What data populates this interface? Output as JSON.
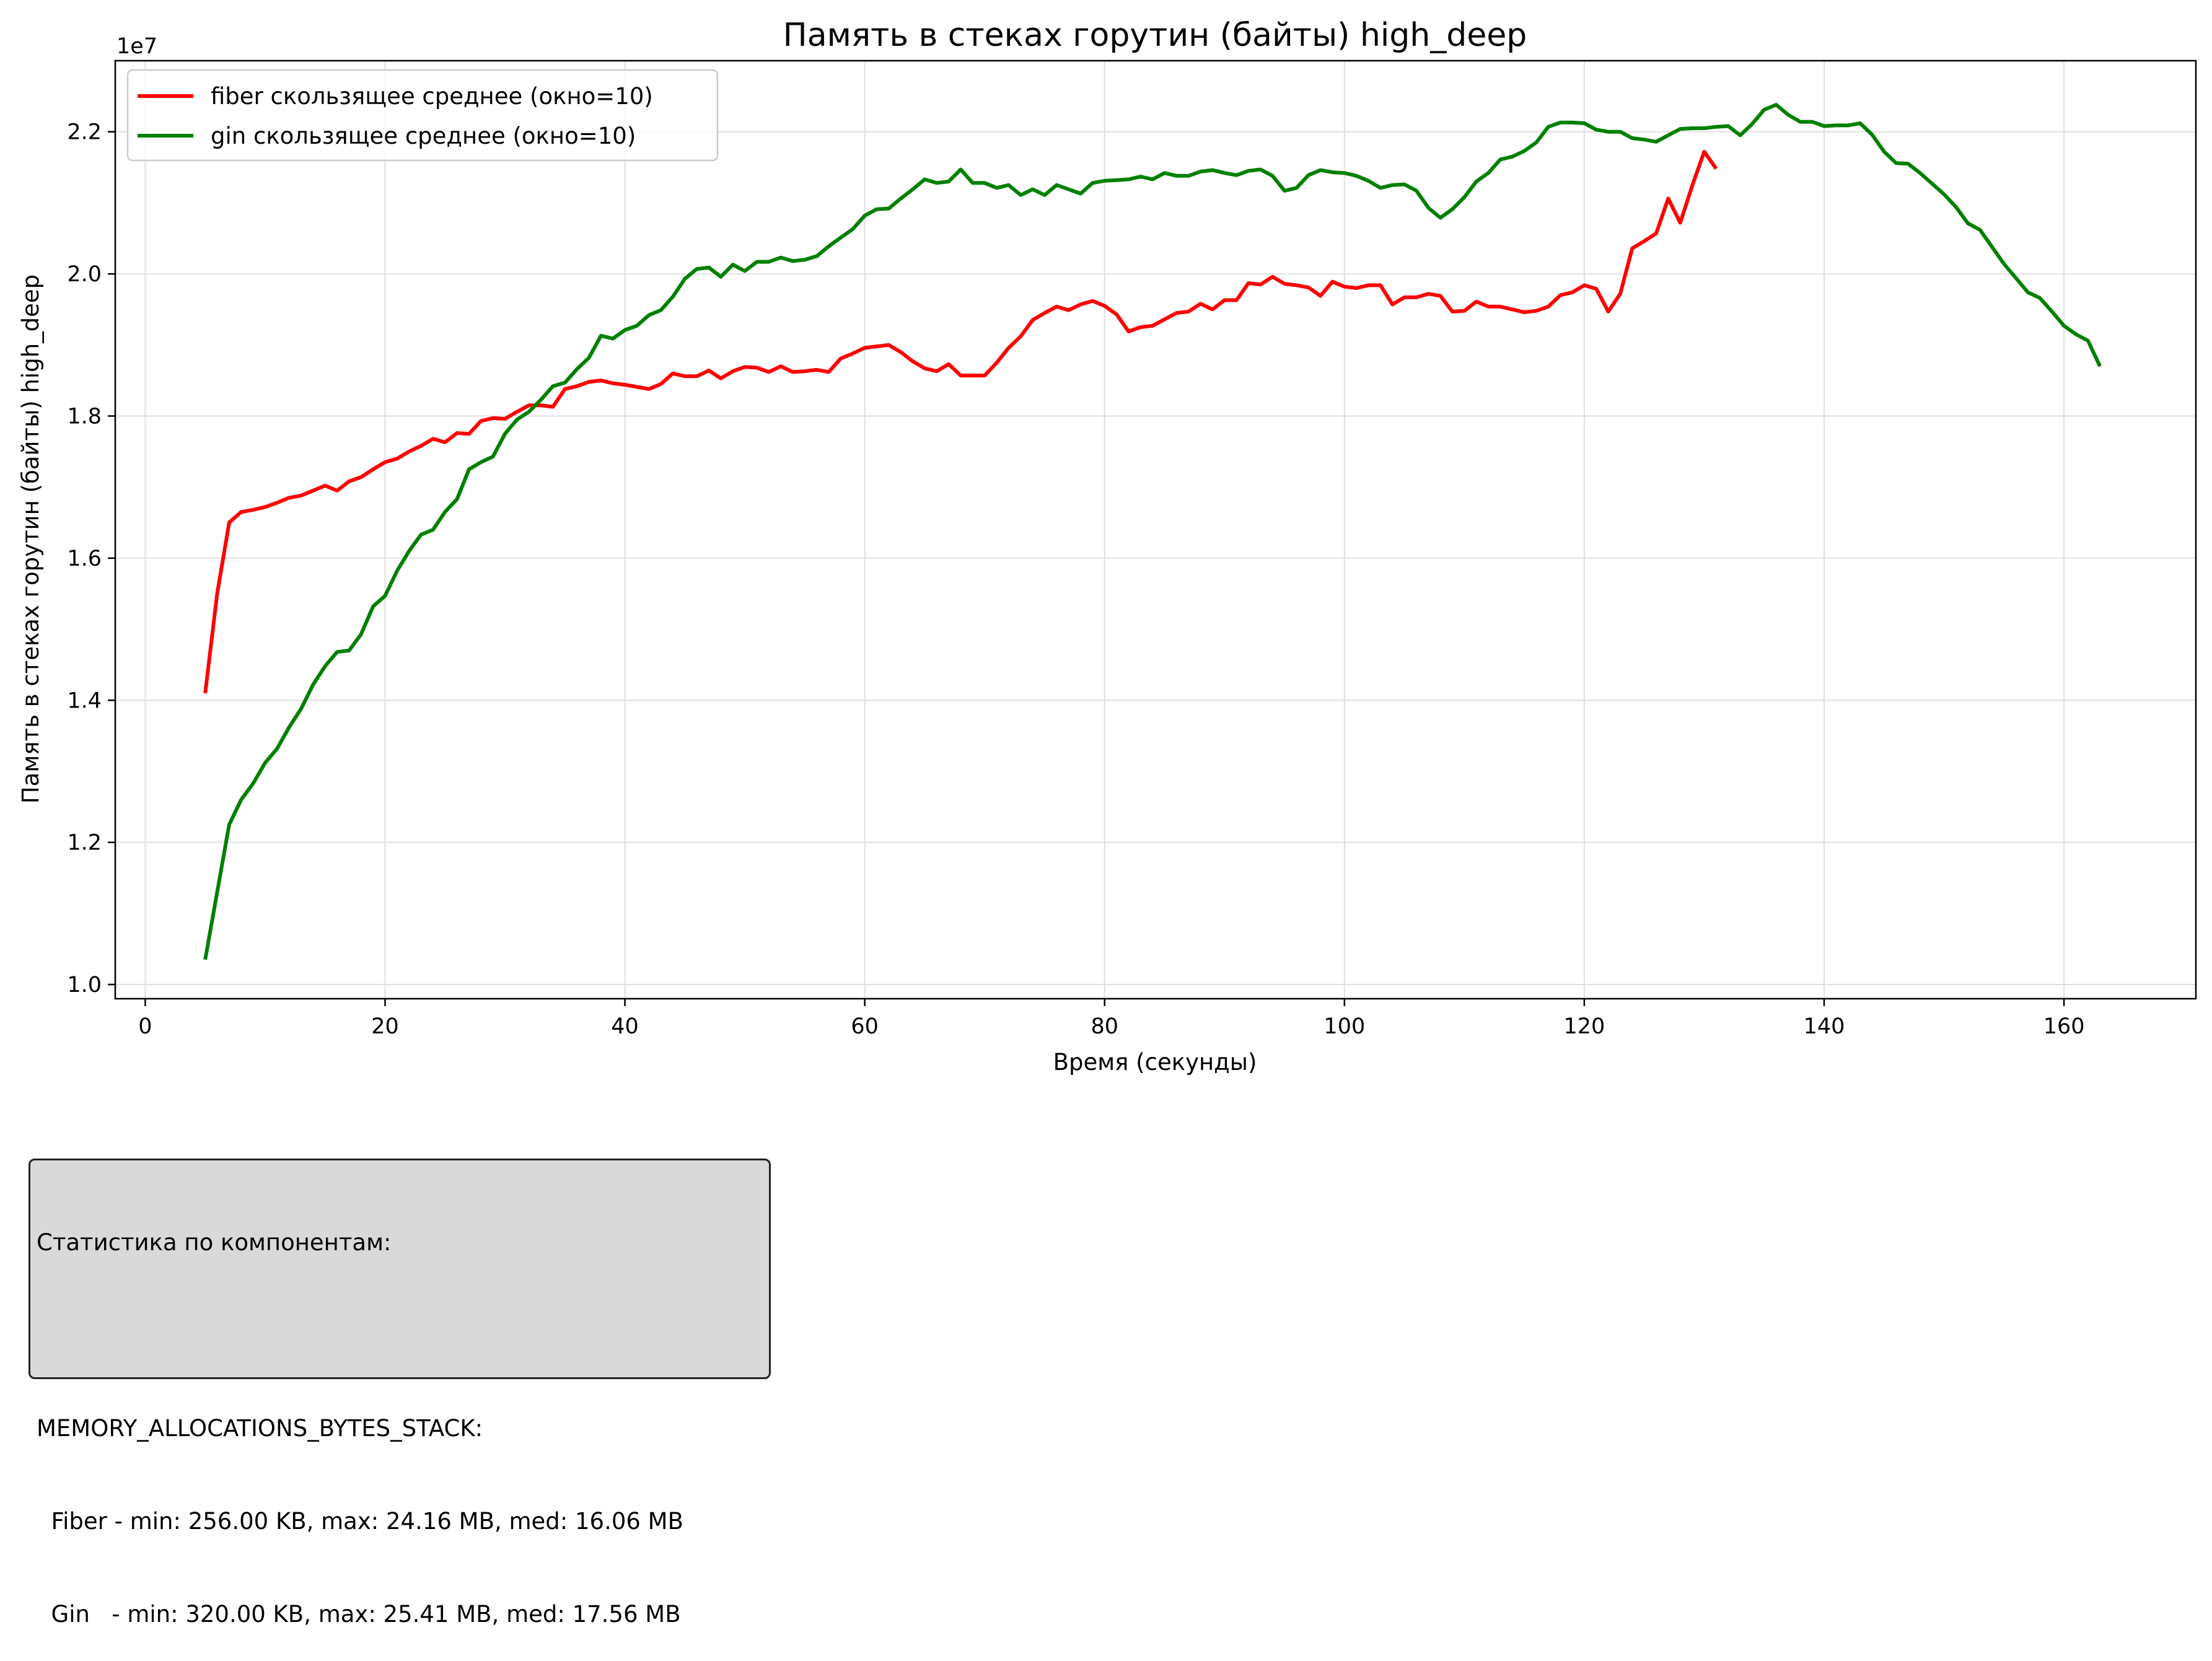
{
  "chart_data": {
    "type": "line",
    "title": "Память в стеках горутин (байты) high_deep",
    "xlabel": "Время (секунды)",
    "ylabel": "Память в стеках горутин (байты) high_deep",
    "y_offset_label": "1e7",
    "xlim": [
      -2.5,
      171
    ],
    "ylim": [
      9800000,
      23000000
    ],
    "x_ticks": [
      0,
      20,
      40,
      60,
      80,
      100,
      120,
      140,
      160
    ],
    "x_tick_labels": [
      "0",
      "20",
      "40",
      "60",
      "80",
      "100",
      "120",
      "140",
      "160"
    ],
    "y_ticks": [
      10000000,
      12000000,
      14000000,
      16000000,
      18000000,
      20000000,
      22000000
    ],
    "y_tick_labels": [
      "1.0",
      "1.2",
      "1.4",
      "1.6",
      "1.8",
      "2.0",
      "2.2"
    ],
    "grid": true,
    "legend_position": "top-left",
    "series": [
      {
        "name": "fiber скользящее среднее (окно=10)",
        "color": "#ff0000",
        "points": [
          [
            5,
            14100000
          ],
          [
            6,
            15500000
          ],
          [
            7,
            16500000
          ],
          [
            8,
            16650000
          ],
          [
            9,
            16680000
          ],
          [
            10,
            16720000
          ],
          [
            11,
            16780000
          ],
          [
            12,
            16850000
          ],
          [
            13,
            16880000
          ],
          [
            14,
            16950000
          ],
          [
            15,
            17020000
          ],
          [
            16,
            16950000
          ],
          [
            17,
            17080000
          ],
          [
            18,
            17140000
          ],
          [
            19,
            17250000
          ],
          [
            20,
            17350000
          ],
          [
            21,
            17400000
          ],
          [
            22,
            17500000
          ],
          [
            23,
            17580000
          ],
          [
            24,
            17680000
          ],
          [
            25,
            17630000
          ],
          [
            26,
            17760000
          ],
          [
            27,
            17750000
          ],
          [
            28,
            17930000
          ],
          [
            29,
            17970000
          ],
          [
            30,
            17960000
          ],
          [
            31,
            18060000
          ],
          [
            32,
            18150000
          ],
          [
            33,
            18150000
          ],
          [
            34,
            18130000
          ],
          [
            35,
            18380000
          ],
          [
            36,
            18420000
          ],
          [
            37,
            18480000
          ],
          [
            38,
            18500000
          ],
          [
            39,
            18460000
          ],
          [
            40,
            18440000
          ],
          [
            41,
            18410000
          ],
          [
            42,
            18380000
          ],
          [
            43,
            18450000
          ],
          [
            44,
            18600000
          ],
          [
            45,
            18560000
          ],
          [
            46,
            18560000
          ],
          [
            47,
            18640000
          ],
          [
            48,
            18530000
          ],
          [
            49,
            18630000
          ],
          [
            50,
            18690000
          ],
          [
            51,
            18680000
          ],
          [
            52,
            18620000
          ],
          [
            53,
            18700000
          ],
          [
            54,
            18620000
          ],
          [
            55,
            18630000
          ],
          [
            56,
            18650000
          ],
          [
            57,
            18620000
          ],
          [
            58,
            18810000
          ],
          [
            59,
            18880000
          ],
          [
            60,
            18960000
          ],
          [
            61,
            18980000
          ],
          [
            62,
            19000000
          ],
          [
            63,
            18900000
          ],
          [
            64,
            18770000
          ],
          [
            65,
            18670000
          ],
          [
            66,
            18630000
          ],
          [
            67,
            18730000
          ],
          [
            68,
            18570000
          ],
          [
            69,
            18570000
          ],
          [
            70,
            18570000
          ],
          [
            71,
            18750000
          ],
          [
            72,
            18960000
          ],
          [
            73,
            19120000
          ],
          [
            74,
            19350000
          ],
          [
            75,
            19450000
          ],
          [
            76,
            19540000
          ],
          [
            77,
            19490000
          ],
          [
            78,
            19570000
          ],
          [
            79,
            19620000
          ],
          [
            80,
            19550000
          ],
          [
            81,
            19430000
          ],
          [
            82,
            19190000
          ],
          [
            83,
            19250000
          ],
          [
            84,
            19270000
          ],
          [
            85,
            19360000
          ],
          [
            86,
            19450000
          ],
          [
            87,
            19470000
          ],
          [
            88,
            19580000
          ],
          [
            89,
            19500000
          ],
          [
            90,
            19630000
          ],
          [
            91,
            19630000
          ],
          [
            92,
            19870000
          ],
          [
            93,
            19850000
          ],
          [
            94,
            19960000
          ],
          [
            95,
            19860000
          ],
          [
            96,
            19840000
          ],
          [
            97,
            19810000
          ],
          [
            98,
            19690000
          ],
          [
            99,
            19890000
          ],
          [
            100,
            19820000
          ],
          [
            101,
            19800000
          ],
          [
            102,
            19840000
          ],
          [
            103,
            19840000
          ],
          [
            104,
            19570000
          ],
          [
            105,
            19670000
          ],
          [
            106,
            19670000
          ],
          [
            107,
            19720000
          ],
          [
            108,
            19690000
          ],
          [
            109,
            19470000
          ],
          [
            110,
            19480000
          ],
          [
            111,
            19610000
          ],
          [
            112,
            19540000
          ],
          [
            113,
            19540000
          ],
          [
            114,
            19500000
          ],
          [
            115,
            19460000
          ],
          [
            116,
            19480000
          ],
          [
            117,
            19540000
          ],
          [
            118,
            19700000
          ],
          [
            119,
            19740000
          ],
          [
            120,
            19840000
          ],
          [
            121,
            19790000
          ],
          [
            122,
            19470000
          ],
          [
            123,
            19720000
          ],
          [
            124,
            20360000
          ],
          [
            125,
            20460000
          ],
          [
            126,
            20570000
          ],
          [
            127,
            21060000
          ],
          [
            128,
            20720000
          ],
          [
            129,
            21240000
          ],
          [
            130,
            21720000
          ],
          [
            131,
            21480000
          ]
        ]
      },
      {
        "name": "gin скользящее среднее (окно=10)",
        "color": "#008000",
        "points": [
          [
            5,
            10350000
          ],
          [
            6,
            11300000
          ],
          [
            7,
            12250000
          ],
          [
            8,
            12600000
          ],
          [
            9,
            12830000
          ],
          [
            10,
            13120000
          ],
          [
            11,
            13320000
          ],
          [
            12,
            13620000
          ],
          [
            13,
            13880000
          ],
          [
            14,
            14220000
          ],
          [
            15,
            14480000
          ],
          [
            16,
            14680000
          ],
          [
            17,
            14700000
          ],
          [
            18,
            14930000
          ],
          [
            19,
            15320000
          ],
          [
            20,
            15470000
          ],
          [
            21,
            15820000
          ],
          [
            22,
            16100000
          ],
          [
            23,
            16330000
          ],
          [
            24,
            16400000
          ],
          [
            25,
            16650000
          ],
          [
            26,
            16830000
          ],
          [
            27,
            17250000
          ],
          [
            28,
            17350000
          ],
          [
            29,
            17430000
          ],
          [
            30,
            17750000
          ],
          [
            31,
            17950000
          ],
          [
            32,
            18060000
          ],
          [
            33,
            18230000
          ],
          [
            34,
            18420000
          ],
          [
            35,
            18470000
          ],
          [
            36,
            18660000
          ],
          [
            37,
            18820000
          ],
          [
            38,
            19130000
          ],
          [
            39,
            19090000
          ],
          [
            40,
            19210000
          ],
          [
            41,
            19270000
          ],
          [
            42,
            19420000
          ],
          [
            43,
            19490000
          ],
          [
            44,
            19680000
          ],
          [
            45,
            19930000
          ],
          [
            46,
            20070000
          ],
          [
            47,
            20090000
          ],
          [
            48,
            19960000
          ],
          [
            49,
            20130000
          ],
          [
            50,
            20040000
          ],
          [
            51,
            20170000
          ],
          [
            52,
            20170000
          ],
          [
            53,
            20230000
          ],
          [
            54,
            20180000
          ],
          [
            55,
            20200000
          ],
          [
            56,
            20250000
          ],
          [
            57,
            20390000
          ],
          [
            58,
            20510000
          ],
          [
            59,
            20630000
          ],
          [
            60,
            20820000
          ],
          [
            61,
            20910000
          ],
          [
            62,
            20920000
          ],
          [
            63,
            21060000
          ],
          [
            64,
            21190000
          ],
          [
            65,
            21330000
          ],
          [
            66,
            21280000
          ],
          [
            67,
            21300000
          ],
          [
            68,
            21470000
          ],
          [
            69,
            21280000
          ],
          [
            70,
            21280000
          ],
          [
            71,
            21210000
          ],
          [
            72,
            21250000
          ],
          [
            73,
            21110000
          ],
          [
            74,
            21190000
          ],
          [
            75,
            21110000
          ],
          [
            76,
            21250000
          ],
          [
            77,
            21190000
          ],
          [
            78,
            21130000
          ],
          [
            79,
            21280000
          ],
          [
            80,
            21310000
          ],
          [
            81,
            21320000
          ],
          [
            82,
            21330000
          ],
          [
            83,
            21370000
          ],
          [
            84,
            21330000
          ],
          [
            85,
            21420000
          ],
          [
            86,
            21380000
          ],
          [
            87,
            21380000
          ],
          [
            88,
            21440000
          ],
          [
            89,
            21460000
          ],
          [
            90,
            21420000
          ],
          [
            91,
            21390000
          ],
          [
            92,
            21450000
          ],
          [
            93,
            21470000
          ],
          [
            94,
            21380000
          ],
          [
            95,
            21170000
          ],
          [
            96,
            21210000
          ],
          [
            97,
            21390000
          ],
          [
            98,
            21460000
          ],
          [
            99,
            21430000
          ],
          [
            100,
            21420000
          ],
          [
            101,
            21380000
          ],
          [
            102,
            21310000
          ],
          [
            103,
            21210000
          ],
          [
            104,
            21250000
          ],
          [
            105,
            21260000
          ],
          [
            106,
            21170000
          ],
          [
            107,
            20930000
          ],
          [
            108,
            20790000
          ],
          [
            109,
            20910000
          ],
          [
            110,
            21080000
          ],
          [
            111,
            21300000
          ],
          [
            112,
            21420000
          ],
          [
            113,
            21610000
          ],
          [
            114,
            21650000
          ],
          [
            115,
            21730000
          ],
          [
            116,
            21850000
          ],
          [
            117,
            22070000
          ],
          [
            118,
            22130000
          ],
          [
            119,
            22130000
          ],
          [
            120,
            22120000
          ],
          [
            121,
            22030000
          ],
          [
            122,
            22000000
          ],
          [
            123,
            22000000
          ],
          [
            124,
            21910000
          ],
          [
            125,
            21890000
          ],
          [
            126,
            21860000
          ],
          [
            127,
            21950000
          ],
          [
            128,
            22040000
          ],
          [
            129,
            22050000
          ],
          [
            130,
            22050000
          ],
          [
            131,
            22070000
          ],
          [
            132,
            22080000
          ],
          [
            133,
            21950000
          ],
          [
            134,
            22110000
          ],
          [
            135,
            22310000
          ],
          [
            136,
            22380000
          ],
          [
            137,
            22240000
          ],
          [
            138,
            22140000
          ],
          [
            139,
            22140000
          ],
          [
            140,
            22080000
          ],
          [
            141,
            22090000
          ],
          [
            142,
            22090000
          ],
          [
            143,
            22120000
          ],
          [
            144,
            21960000
          ],
          [
            145,
            21720000
          ],
          [
            146,
            21560000
          ],
          [
            147,
            21550000
          ],
          [
            148,
            21420000
          ],
          [
            149,
            21270000
          ],
          [
            150,
            21120000
          ],
          [
            151,
            20940000
          ],
          [
            152,
            20710000
          ],
          [
            153,
            20620000
          ],
          [
            154,
            20380000
          ],
          [
            155,
            20140000
          ],
          [
            156,
            19940000
          ],
          [
            157,
            19740000
          ],
          [
            158,
            19660000
          ],
          [
            159,
            19470000
          ],
          [
            160,
            19270000
          ],
          [
            161,
            19150000
          ],
          [
            162,
            19060000
          ],
          [
            163,
            18700000
          ]
        ]
      }
    ]
  },
  "stats_box": {
    "lines": [
      "Статистика по компонентам:",
      "",
      "MEMORY_ALLOCATIONS_BYTES_STACK:",
      "  Fiber - min: 256.00 KB, max: 24.16 MB, med: 16.06 MB",
      "  Gin   - min: 320.00 KB, max: 25.41 MB, med: 17.56 MB"
    ]
  }
}
